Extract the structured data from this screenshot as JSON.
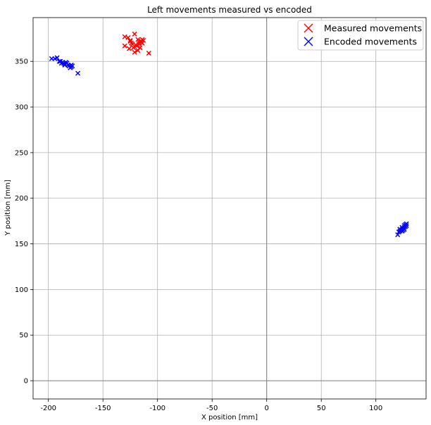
{
  "chart_data": {
    "type": "scatter",
    "title": "Left movements measured vs encoded",
    "xlabel": "X position [mm]",
    "ylabel": "Y position [mm]",
    "xlim": [
      -214,
      146
    ],
    "ylim": [
      -20,
      398
    ],
    "xticks": [
      -200,
      -150,
      -100,
      -50,
      0,
      50,
      100
    ],
    "yticks": [
      0,
      50,
      100,
      150,
      200,
      250,
      300,
      350
    ],
    "grid": true,
    "zero_lines": true,
    "legend_position": "top-right",
    "series": [
      {
        "name": "Measured movements",
        "color": "#ff0000",
        "marker": "x",
        "x": [
          -130,
          -127,
          -121,
          -125,
          -118,
          -115,
          -113,
          -117,
          -124,
          -120,
          -130,
          -126,
          -122,
          -119,
          -116,
          -114,
          -123,
          -117,
          -121,
          -108,
          -125,
          -118,
          -114
        ],
        "y": [
          377,
          376,
          380,
          372,
          374,
          372,
          373,
          369,
          370,
          368,
          367,
          364,
          365,
          367,
          365,
          370,
          369,
          371,
          360,
          359,
          373,
          362,
          374
        ]
      },
      {
        "name": "Encoded movements",
        "color": "#0000ff",
        "marker": "x",
        "x": [
          -197,
          -194,
          -192,
          -190,
          -188,
          -186,
          -185,
          -184,
          -183,
          -182,
          -181,
          -180,
          -179,
          -179,
          -178,
          -187,
          -189,
          -185,
          -173
        ],
        "y": [
          353,
          353,
          354,
          350,
          348,
          348,
          347,
          349,
          348,
          346,
          345,
          343,
          346,
          344,
          345,
          349,
          350,
          346,
          337
        ],
        "x2": [
          120,
          121,
          122,
          123,
          124,
          124,
          125,
          125,
          126,
          126,
          127,
          127,
          128,
          128,
          122,
          124,
          126
        ],
        "y2": [
          160,
          163,
          164,
          165,
          164,
          166,
          167,
          165,
          168,
          166,
          169,
          171,
          170,
          172,
          166,
          168,
          170
        ]
      }
    ]
  }
}
